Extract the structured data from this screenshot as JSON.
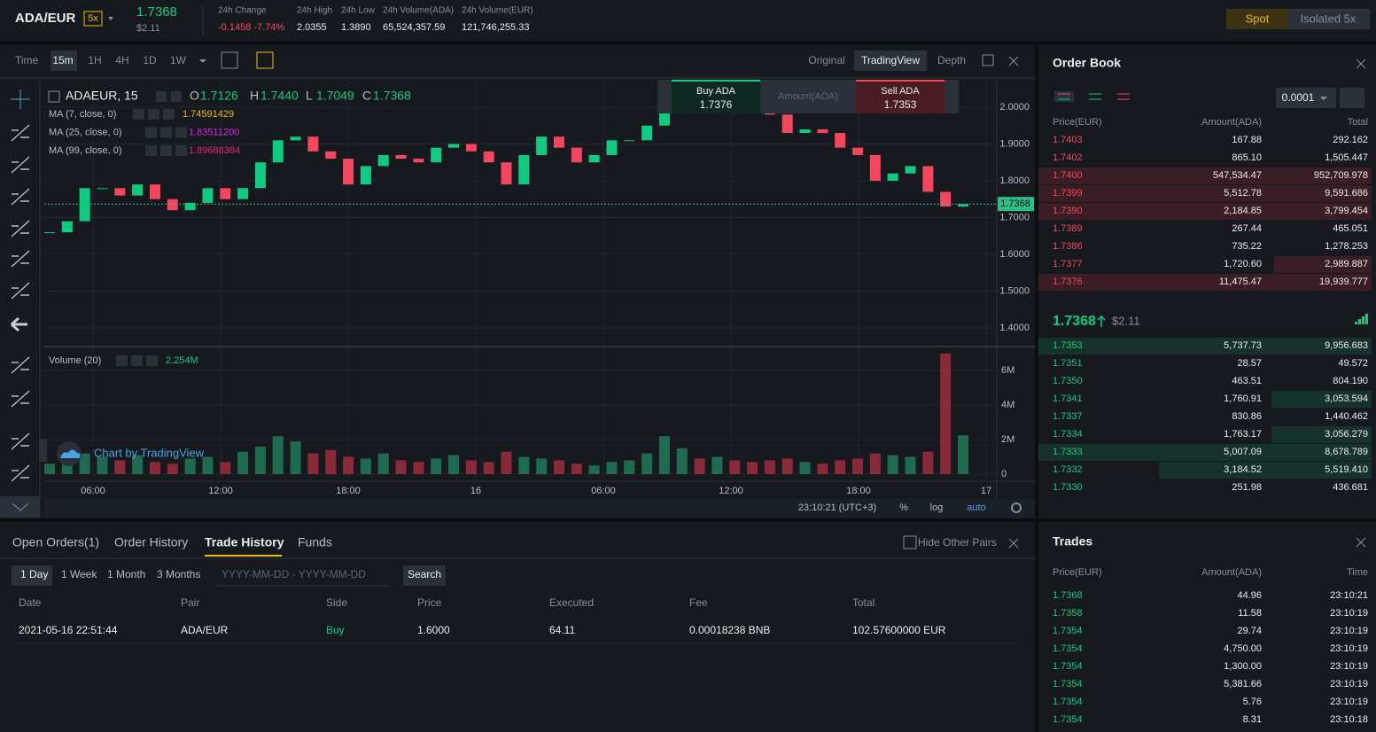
{
  "header": {
    "pair": "ADA/EUR",
    "leverage": "5x",
    "last_price": "1.7368",
    "last_price_usd": "$2.11",
    "stats": [
      {
        "label": "24h Change",
        "value": "-0.1458 -7.74%"
      },
      {
        "label": "24h High",
        "value": "2.0355"
      },
      {
        "label": "24h Low",
        "value": "1.3890"
      },
      {
        "label": "24h Volume(ADA)",
        "value": "65,524,357.59"
      },
      {
        "label": "24h Volume(EUR)",
        "value": "121,746,255.33"
      }
    ],
    "modes": [
      "Spot",
      "Isolated 5x"
    ]
  },
  "chart_toolbar": {
    "label": "Time",
    "intervals": [
      "15m",
      "1H",
      "4H",
      "1D",
      "1W"
    ],
    "views": [
      "Original",
      "TradingView",
      "Depth"
    ]
  },
  "quick_trade": {
    "buy_label": "Buy ADA",
    "buy_price": "1.7376",
    "amount_placeholder": "Amount(ADA)",
    "sell_label": "Sell ADA",
    "sell_price": "1.7353"
  },
  "chart_data": [
    {
      "type": "candlestick",
      "title": "ADAEUR, 15",
      "ohlc": [
        {
          "label": "O",
          "value": "1.7126"
        },
        {
          "label": "H",
          "value": "1.7440"
        },
        {
          "label": "L",
          "value": "1.7049"
        },
        {
          "label": "C",
          "value": "1.7368"
        }
      ],
      "indicators": [
        {
          "name": "MA (7, close, 0)",
          "value": "1.74591429",
          "color": "#f0b90b"
        },
        {
          "name": "MA (25, close, 0)",
          "value": "1.83511200",
          "color": "#d62be8"
        },
        {
          "name": "MA (99, close, 0)",
          "value": "1.89688384",
          "color": "#e6247b"
        }
      ],
      "values": [
        1.66,
        1.69,
        1.78,
        1.78,
        1.76,
        1.79,
        1.75,
        1.72,
        1.74,
        1.78,
        1.75,
        1.78,
        1.85,
        1.91,
        1.92,
        1.88,
        1.86,
        1.79,
        1.84,
        1.87,
        1.86,
        1.85,
        1.89,
        1.9,
        1.88,
        1.85,
        1.79,
        1.87,
        1.92,
        1.89,
        1.85,
        1.87,
        1.91,
        1.91,
        1.95,
        2.02,
        2.04,
        2.02,
        2.03,
        2.02,
        2.01,
        1.98,
        1.93,
        1.94,
        1.93,
        1.89,
        1.87,
        1.8,
        1.82,
        1.84,
        1.77,
        1.73,
        1.7368
      ],
      "up_color": "#0ecb81",
      "down_color": "#f6465d",
      "price_line": 1.7368,
      "ylim": [
        1.3518,
        2.0747
      ],
      "yticks": [
        {
          "value": 2,
          "label": "2.0000"
        },
        {
          "value": 1.9,
          "label": "1.9000"
        },
        {
          "value": 1.8,
          "label": "1.8000"
        },
        {
          "value": 1.7,
          "label": "1.7000"
        },
        {
          "value": 1.6,
          "label": "1.6000"
        },
        {
          "value": 1.5,
          "label": "1.5000"
        },
        {
          "value": 1.4,
          "label": "1.4000"
        }
      ],
      "x_labels": [
        "06:00",
        "12:00",
        "18:00",
        "16",
        "06:00",
        "12:00",
        "18:00",
        "17"
      ],
      "grid": true
    },
    {
      "type": "bar",
      "title": "Volume (20)",
      "indicator_value": "2.254M",
      "values": [
        600000,
        900000,
        1200000,
        1000000,
        800000,
        1100000,
        700000,
        600000,
        900000,
        1000000,
        700000,
        1300000,
        1600000,
        2200000,
        1900000,
        1200000,
        1400000,
        1000000,
        900000,
        1200000,
        800000,
        700000,
        900000,
        1100000,
        800000,
        700000,
        1300000,
        1000000,
        900000,
        800000,
        600000,
        500000,
        700000,
        800000,
        1200000,
        2200000,
        1500000,
        900000,
        1000000,
        800000,
        700000,
        800000,
        900000,
        700000,
        600000,
        800000,
        900000,
        1200000,
        1100000,
        1000000,
        1300000,
        7000000,
        2250000
      ],
      "ylim": [
        0,
        7200000
      ],
      "yticks": [
        0,
        {
          "value": 2000000,
          "label": "2M"
        },
        {
          "value": 4000000,
          "label": "4M"
        },
        {
          "value": 6000000,
          "label": "6M"
        }
      ],
      "watermark": "Chart by TradingView",
      "status": {
        "time": "23:10:21 (UTC+3)",
        "options": [
          "%",
          "log",
          "auto"
        ]
      }
    }
  ],
  "order_book": {
    "title": "Order Book",
    "tick_size": "0.0001",
    "columns": [
      "Price(EUR)",
      "Amount(ADA)",
      "Total"
    ],
    "asks": [
      [
        "1.7403",
        "167.88",
        "292.162"
      ],
      [
        "1.7402",
        "865.10",
        "1,505.447"
      ],
      [
        "1.7400",
        "547,534.47",
        "952,709.978"
      ],
      [
        "1.7399",
        "5,512.78",
        "9,591.686"
      ],
      [
        "1.7390",
        "2,184.85",
        "3,799.454"
      ],
      [
        "1.7389",
        "267.44",
        "465.051"
      ],
      [
        "1.7386",
        "735.22",
        "1,278.253"
      ],
      [
        "1.7377",
        "1,720.60",
        "2,989.887"
      ],
      [
        "1.7376",
        "11,475.47",
        "19,939.777"
      ]
    ],
    "mid_price": "1.7368",
    "mid_usd": "$2.11",
    "bids": [
      [
        "1.7353",
        "5,737.73",
        "9,956.683"
      ],
      [
        "1.7351",
        "28.57",
        "49.572"
      ],
      [
        "1.7350",
        "463.51",
        "804.190"
      ],
      [
        "1.7341",
        "1,760.91",
        "3,053.594"
      ],
      [
        "1.7337",
        "830.86",
        "1,440.462"
      ],
      [
        "1.7334",
        "1,763.17",
        "3,056.279"
      ],
      [
        "1.7333",
        "5,007.09",
        "8,678.789"
      ],
      [
        "1.7332",
        "3,184.52",
        "5,519.410"
      ],
      [
        "1.7330",
        "251.98",
        "436.681"
      ]
    ]
  },
  "trades": {
    "title": "Trades",
    "columns": [
      "Price(EUR)",
      "Amount(ADA)",
      "Time"
    ],
    "rows": [
      [
        "1.7368",
        "44.96",
        "23:10:21"
      ],
      [
        "1.7358",
        "11.58",
        "23:10:19"
      ],
      [
        "1.7354",
        "29.74",
        "23:10:19"
      ],
      [
        "1.7354",
        "4,750.00",
        "23:10:19"
      ],
      [
        "1.7354",
        "1,300.00",
        "23:10:19"
      ],
      [
        "1.7354",
        "5,381.66",
        "23:10:19"
      ],
      [
        "1.7354",
        "5.76",
        "23:10:19"
      ],
      [
        "1.7354",
        "8.31",
        "23:10:18"
      ]
    ]
  },
  "orders": {
    "tabs": [
      "Open Orders(1)",
      "Order History",
      "Trade History",
      "Funds"
    ],
    "hide_other_pairs": "Hide Other Pairs",
    "periods": [
      "1 Day",
      "1 Week",
      "1 Month",
      "3 Months"
    ],
    "date_placeholder": "YYYY-MM-DD - YYYY-MM-DD",
    "search": "Search",
    "table": {
      "columns": [
        "Date",
        "Pair",
        "Side",
        "Price",
        "Executed",
        "Fee",
        "Total"
      ],
      "rows": [
        [
          "2021-05-16 22:51:44",
          "ADA/EUR",
          "Buy",
          "1.6000",
          "64.11",
          "0.00018238 BNB",
          "102.57600000 EUR"
        ]
      ]
    }
  }
}
